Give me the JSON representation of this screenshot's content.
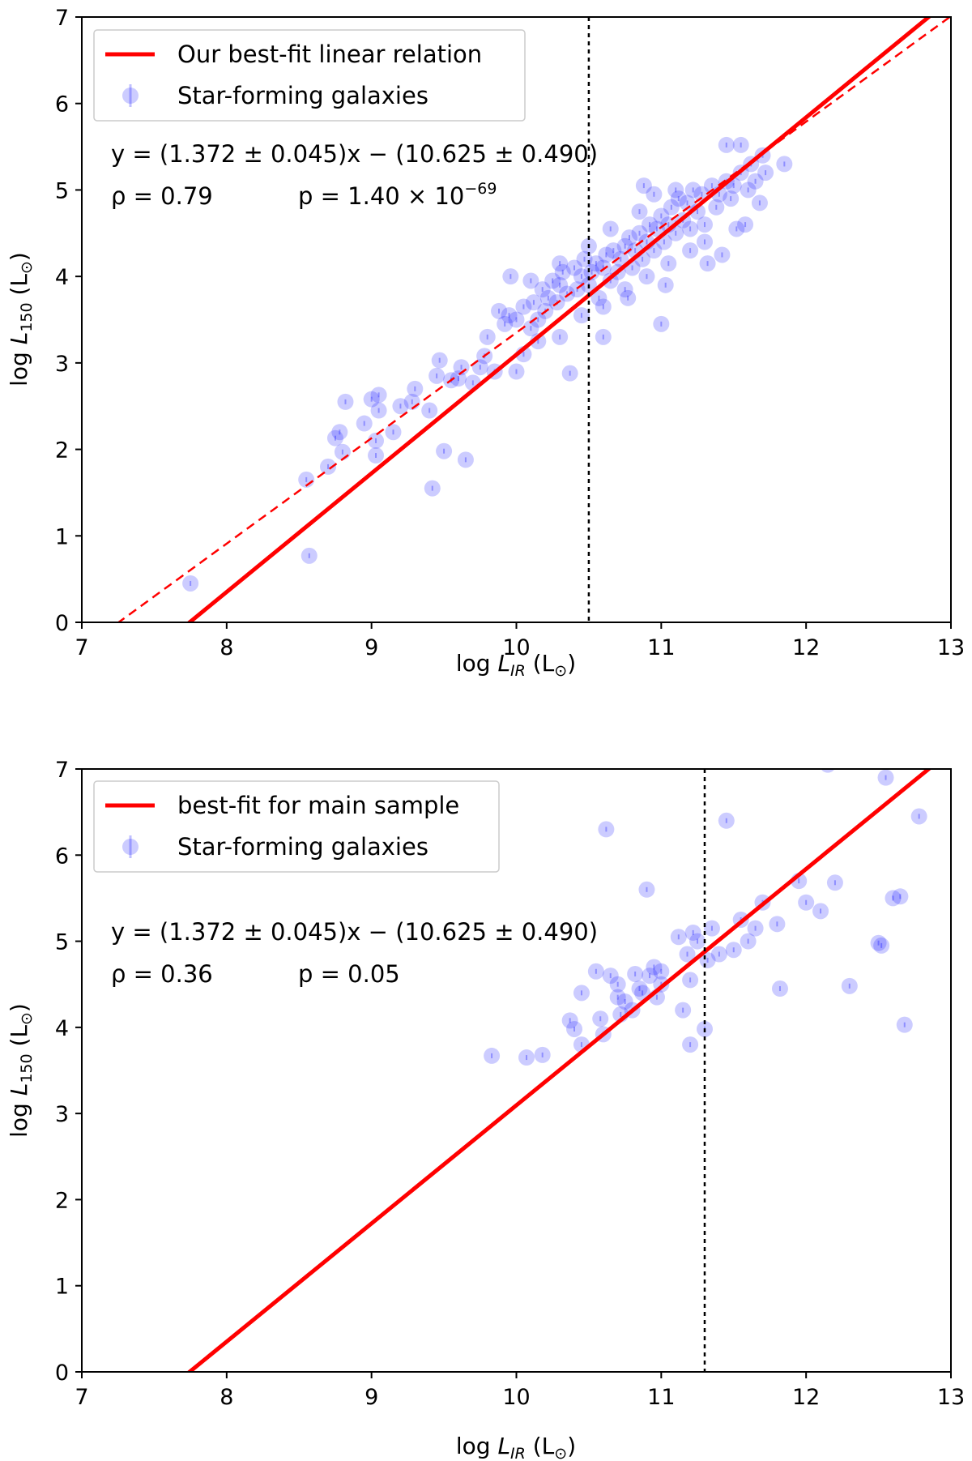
{
  "colors": {
    "fit_line": "#ff0000",
    "points": "#0000ff",
    "vline": "#000000",
    "axis": "#000000",
    "legend_border": "#cccccc"
  },
  "chart_data": [
    {
      "type": "scatter",
      "xlim": [
        7,
        13
      ],
      "ylim": [
        0,
        7
      ],
      "xticks": [
        "7",
        "8",
        "9",
        "10",
        "11",
        "12",
        "13"
      ],
      "yticks": [
        "0",
        "1",
        "2",
        "3",
        "4",
        "5",
        "6",
        "7"
      ],
      "xlabel_main": "log ",
      "xlabel_var": "L",
      "xlabel_sub": "IR",
      "xlabel_unit": " (L",
      "xlabel_unit_sub": "⊙",
      "xlabel_close": ")",
      "ylabel_main": "log ",
      "ylabel_var": "L",
      "ylabel_sub": "150",
      "ylabel_unit": " (L",
      "ylabel_unit_sub": "⊙",
      "ylabel_close": ")",
      "legend": [
        "Our best-fit linear relation",
        "Star-forming galaxies"
      ],
      "legend_location": "upper-left",
      "fit_line": {
        "slope": 1.372,
        "intercept": -10.625
      },
      "dashed_line": {
        "slope": 1.22,
        "intercept": -8.85
      },
      "vline_x": 10.5,
      "annotation_eq": "y = (1.372 ± 0.045)x − (10.625 ± 0.490)",
      "annotation_rho": "ρ = 0.79",
      "annotation_p": "p = 1.40 × 10",
      "annotation_p_exp": "−69",
      "points": [
        [
          7.75,
          0.45
        ],
        [
          8.57,
          0.77
        ],
        [
          8.55,
          1.65
        ],
        [
          8.7,
          1.8
        ],
        [
          8.8,
          1.97
        ],
        [
          8.75,
          2.13
        ],
        [
          8.78,
          2.2
        ],
        [
          8.82,
          2.55
        ],
        [
          8.95,
          2.3
        ],
        [
          9.0,
          2.58
        ],
        [
          9.05,
          2.63
        ],
        [
          9.05,
          2.45
        ],
        [
          9.03,
          2.1
        ],
        [
          9.03,
          1.93
        ],
        [
          9.15,
          2.2
        ],
        [
          9.2,
          2.5
        ],
        [
          9.28,
          2.55
        ],
        [
          9.3,
          2.7
        ],
        [
          9.4,
          2.45
        ],
        [
          9.42,
          1.55
        ],
        [
          9.45,
          2.85
        ],
        [
          9.47,
          3.03
        ],
        [
          9.5,
          1.98
        ],
        [
          9.55,
          2.8
        ],
        [
          9.6,
          2.82
        ],
        [
          9.62,
          2.95
        ],
        [
          9.65,
          1.88
        ],
        [
          9.7,
          2.77
        ],
        [
          9.75,
          2.95
        ],
        [
          9.78,
          3.08
        ],
        [
          9.8,
          3.3
        ],
        [
          9.85,
          2.9
        ],
        [
          9.88,
          3.6
        ],
        [
          9.92,
          3.45
        ],
        [
          9.95,
          3.55
        ],
        [
          9.96,
          4.0
        ],
        [
          10.0,
          2.9
        ],
        [
          10.0,
          3.5
        ],
        [
          10.05,
          3.65
        ],
        [
          10.1,
          3.4
        ],
        [
          10.12,
          3.7
        ],
        [
          10.15,
          3.5
        ],
        [
          10.18,
          3.85
        ],
        [
          10.2,
          3.6
        ],
        [
          10.22,
          3.75
        ],
        [
          10.25,
          3.95
        ],
        [
          10.28,
          3.7
        ],
        [
          10.3,
          3.9
        ],
        [
          10.32,
          4.05
        ],
        [
          10.35,
          3.8
        ],
        [
          10.37,
          2.88
        ],
        [
          10.4,
          4.1
        ],
        [
          10.42,
          3.85
        ],
        [
          10.45,
          4.0
        ],
        [
          10.47,
          4.2
        ],
        [
          10.5,
          3.9
        ],
        [
          10.52,
          4.05
        ],
        [
          10.55,
          4.15
        ],
        [
          10.57,
          3.75
        ],
        [
          10.6,
          4.1
        ],
        [
          10.6,
          3.3
        ],
        [
          10.62,
          4.25
        ],
        [
          10.65,
          3.95
        ],
        [
          10.67,
          4.3
        ],
        [
          10.7,
          4.05
        ],
        [
          10.72,
          4.2
        ],
        [
          10.75,
          4.35
        ],
        [
          10.77,
          3.75
        ],
        [
          10.78,
          4.45
        ],
        [
          10.8,
          4.1
        ],
        [
          10.82,
          4.3
        ],
        [
          10.85,
          4.5
        ],
        [
          10.87,
          4.2
        ],
        [
          10.88,
          5.05
        ],
        [
          10.9,
          4.4
        ],
        [
          10.92,
          4.6
        ],
        [
          10.95,
          4.3
        ],
        [
          10.97,
          4.55
        ],
        [
          11.0,
          4.7
        ],
        [
          11.0,
          3.45
        ],
        [
          11.02,
          4.4
        ],
        [
          11.03,
          3.9
        ],
        [
          11.05,
          4.6
        ],
        [
          11.07,
          4.8
        ],
        [
          11.1,
          4.5
        ],
        [
          11.12,
          4.9
        ],
        [
          11.15,
          4.65
        ],
        [
          11.18,
          4.85
        ],
        [
          11.2,
          4.55
        ],
        [
          11.22,
          5.0
        ],
        [
          11.25,
          4.75
        ],
        [
          11.28,
          4.95
        ],
        [
          11.3,
          4.4
        ],
        [
          11.32,
          4.15
        ],
        [
          11.35,
          5.05
        ],
        [
          11.38,
          4.8
        ],
        [
          11.4,
          4.95
        ],
        [
          11.42,
          4.25
        ],
        [
          11.45,
          5.1
        ],
        [
          11.48,
          4.9
        ],
        [
          11.5,
          5.05
        ],
        [
          11.52,
          4.55
        ],
        [
          11.55,
          5.2
        ],
        [
          11.58,
          4.6
        ],
        [
          11.6,
          5.0
        ],
        [
          11.62,
          5.3
        ],
        [
          11.65,
          5.1
        ],
        [
          11.68,
          4.85
        ],
        [
          11.7,
          5.4
        ],
        [
          11.72,
          5.2
        ],
        [
          11.85,
          5.3
        ],
        [
          11.45,
          5.52
        ],
        [
          11.55,
          5.52
        ],
        [
          10.3,
          3.3
        ],
        [
          10.15,
          3.25
        ],
        [
          10.05,
          3.1
        ],
        [
          10.1,
          3.95
        ],
        [
          10.3,
          4.15
        ],
        [
          10.5,
          4.35
        ],
        [
          10.65,
          4.55
        ],
        [
          10.85,
          4.75
        ],
        [
          10.95,
          4.95
        ],
        [
          11.1,
          5.0
        ],
        [
          11.3,
          4.6
        ],
        [
          10.45,
          3.55
        ],
        [
          10.6,
          3.65
        ],
        [
          10.75,
          3.85
        ],
        [
          10.9,
          4.0
        ],
        [
          11.05,
          4.15
        ],
        [
          11.2,
          4.3
        ]
      ]
    },
    {
      "type": "scatter",
      "xlim": [
        7,
        13
      ],
      "ylim": [
        0,
        7
      ],
      "xticks": [
        "7",
        "8",
        "9",
        "10",
        "11",
        "12",
        "13"
      ],
      "yticks": [
        "0",
        "1",
        "2",
        "3",
        "4",
        "5",
        "6",
        "7"
      ],
      "xlabel_main": "log ",
      "xlabel_var": "L",
      "xlabel_sub": "IR",
      "xlabel_unit": " (L",
      "xlabel_unit_sub": "⊙",
      "xlabel_close": ")",
      "ylabel_main": "log ",
      "ylabel_var": "L",
      "ylabel_sub": "150",
      "ylabel_unit": " (L",
      "ylabel_unit_sub": "⊙",
      "ylabel_close": ")",
      "legend": [
        "best-fit for main sample",
        "Star-forming galaxies"
      ],
      "legend_location": "upper-left",
      "fit_line": {
        "slope": 1.372,
        "intercept": -10.625
      },
      "vline_x": 11.3,
      "annotation_eq": "y = (1.372 ± 0.045)x − (10.625 ± 0.490)",
      "annotation_rho": "ρ = 0.36",
      "annotation_p": "p = 0.05",
      "annotation_p_exp": "",
      "points": [
        [
          9.83,
          3.67
        ],
        [
          10.07,
          3.65
        ],
        [
          10.18,
          3.68
        ],
        [
          10.37,
          4.08
        ],
        [
          10.4,
          3.98
        ],
        [
          10.45,
          4.4
        ],
        [
          10.45,
          3.8
        ],
        [
          10.55,
          4.65
        ],
        [
          10.58,
          4.1
        ],
        [
          10.6,
          3.92
        ],
        [
          10.62,
          6.3
        ],
        [
          10.65,
          4.6
        ],
        [
          10.7,
          4.5
        ],
        [
          10.7,
          4.35
        ],
        [
          10.72,
          4.15
        ],
        [
          10.75,
          4.3
        ],
        [
          10.8,
          4.2
        ],
        [
          10.82,
          4.62
        ],
        [
          10.85,
          4.45
        ],
        [
          10.87,
          4.4
        ],
        [
          10.9,
          5.6
        ],
        [
          10.92,
          4.6
        ],
        [
          10.95,
          4.7
        ],
        [
          10.97,
          4.35
        ],
        [
          11.0,
          4.65
        ],
        [
          11.0,
          4.5
        ],
        [
          11.12,
          5.05
        ],
        [
          11.15,
          4.2
        ],
        [
          11.18,
          4.85
        ],
        [
          11.2,
          4.55
        ],
        [
          11.22,
          5.1
        ],
        [
          11.2,
          3.8
        ],
        [
          11.25,
          5.0
        ],
        [
          11.3,
          3.98
        ],
        [
          11.32,
          4.78
        ],
        [
          11.35,
          5.15
        ],
        [
          11.4,
          4.85
        ],
        [
          11.45,
          6.4
        ],
        [
          11.5,
          4.9
        ],
        [
          11.55,
          5.25
        ],
        [
          11.6,
          5.0
        ],
        [
          11.65,
          5.15
        ],
        [
          11.7,
          5.45
        ],
        [
          11.8,
          5.2
        ],
        [
          11.82,
          4.45
        ],
        [
          11.95,
          5.7
        ],
        [
          12.0,
          5.45
        ],
        [
          12.1,
          5.35
        ],
        [
          12.2,
          5.68
        ],
        [
          12.3,
          4.48
        ],
        [
          12.5,
          4.98
        ],
        [
          12.52,
          4.95
        ],
        [
          12.6,
          5.5
        ],
        [
          12.65,
          5.52
        ],
        [
          12.68,
          4.03
        ],
        [
          12.55,
          6.9
        ],
        [
          12.78,
          6.45
        ],
        [
          12.15,
          7.05
        ]
      ]
    }
  ]
}
